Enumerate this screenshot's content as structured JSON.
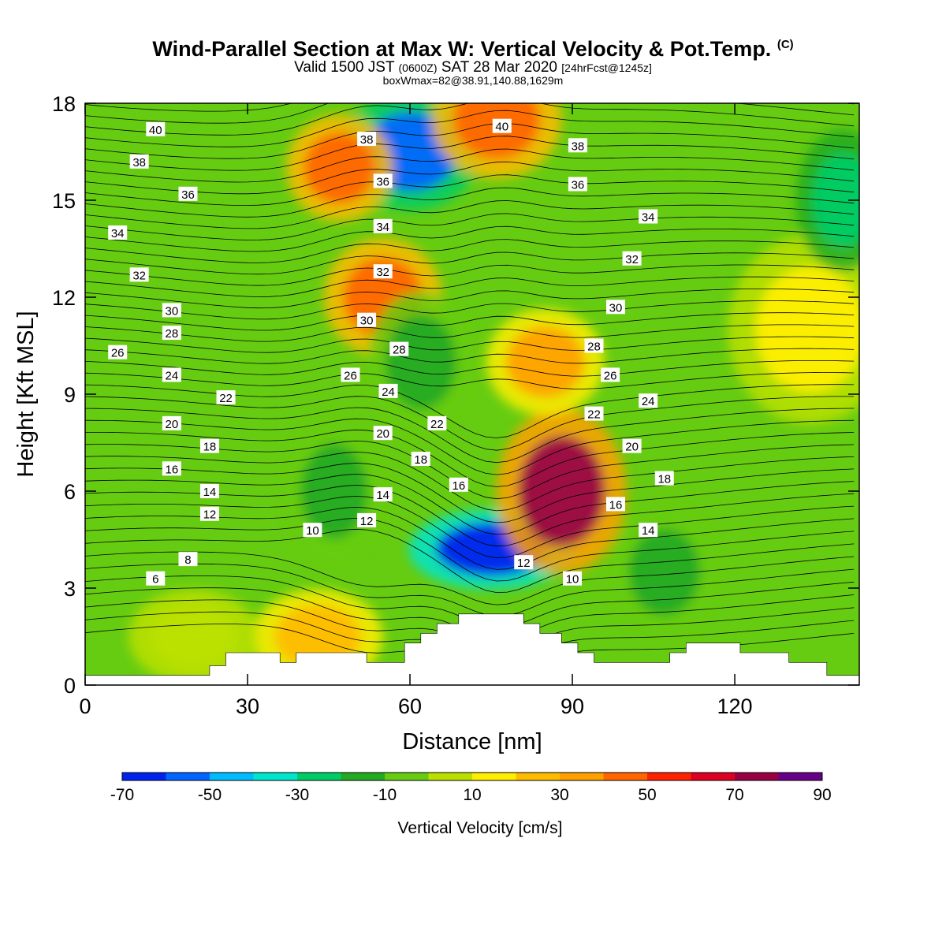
{
  "title": {
    "main": "Wind-Parallel Section at Max W: Vertical Velocity & Pot.Temp.",
    "copyright": "(C)",
    "valid_prefix": "Valid 1500 JST",
    "valid_utc": "(0600Z)",
    "valid_date": "SAT 28 Mar 2020",
    "forecast": "[24hrFcst@1245z]",
    "box_info": "boxWmax=82@38.91,140.88,1629m"
  },
  "chart_data": {
    "type": "heatmap",
    "xlabel": "Distance [nm]",
    "ylabel": "Height [Kft MSL]",
    "xlim": [
      0,
      143
    ],
    "ylim": [
      0,
      18
    ],
    "x_ticks": [
      0,
      30,
      60,
      90,
      120
    ],
    "y_ticks": [
      0,
      3,
      6,
      9,
      12,
      15,
      18
    ],
    "colorbar": {
      "label": "Vertical Velocity [cm/s]",
      "levels": [
        -70,
        -60,
        -50,
        -40,
        -30,
        -20,
        -10,
        0,
        10,
        20,
        30,
        40,
        50,
        60,
        70,
        80,
        90
      ],
      "tick_labels": [
        "-70",
        "-50",
        "-30",
        "-10",
        "10",
        "30",
        "50",
        "70",
        "90"
      ],
      "colors": [
        "#0022ee",
        "#0066ff",
        "#00bbff",
        "#00e5cc",
        "#00cc66",
        "#22aa22",
        "#66cc11",
        "#bbe000",
        "#ffee00",
        "#ffbb00",
        "#ffa000",
        "#ff6600",
        "#ff2200",
        "#dd0022",
        "#990044",
        "#660088"
      ]
    },
    "velocity_features": [
      {
        "x": 75,
        "y": 4.2,
        "value": -65
      },
      {
        "x": 60,
        "y": 16.5,
        "value": -55
      },
      {
        "x": 88,
        "y": 6.0,
        "value": 70
      },
      {
        "x": 76,
        "y": 17.5,
        "value": 45
      },
      {
        "x": 47,
        "y": 16.0,
        "value": 45
      },
      {
        "x": 55,
        "y": 12.0,
        "value": 40
      },
      {
        "x": 85,
        "y": 10.0,
        "value": 35
      },
      {
        "x": 43,
        "y": 1.5,
        "value": 25
      },
      {
        "x": 134,
        "y": 11.0,
        "value": 15
      },
      {
        "x": 20,
        "y": 1.5,
        "value": 8
      },
      {
        "x": 46,
        "y": 6.0,
        "value": -18
      },
      {
        "x": 62,
        "y": 10.0,
        "value": -15
      },
      {
        "x": 107,
        "y": 3.5,
        "value": -15
      },
      {
        "x": 140,
        "y": 15.0,
        "value": -22
      }
    ],
    "theta_labels": [
      {
        "value": "40",
        "x": 13,
        "y": 17.2
      },
      {
        "value": "38",
        "x": 10,
        "y": 16.2
      },
      {
        "value": "36",
        "x": 19,
        "y": 15.2
      },
      {
        "value": "34",
        "x": 6,
        "y": 14.0
      },
      {
        "value": "32",
        "x": 10,
        "y": 12.7
      },
      {
        "value": "30",
        "x": 16,
        "y": 11.6
      },
      {
        "value": "28",
        "x": 16,
        "y": 10.9
      },
      {
        "value": "26",
        "x": 6,
        "y": 10.3
      },
      {
        "value": "24",
        "x": 16,
        "y": 9.6
      },
      {
        "value": "22",
        "x": 26,
        "y": 8.9
      },
      {
        "value": "20",
        "x": 16,
        "y": 8.1
      },
      {
        "value": "18",
        "x": 23,
        "y": 7.4
      },
      {
        "value": "16",
        "x": 16,
        "y": 6.7
      },
      {
        "value": "14",
        "x": 23,
        "y": 6.0
      },
      {
        "value": "12",
        "x": 23,
        "y": 5.3
      },
      {
        "value": "8",
        "x": 19,
        "y": 3.9
      },
      {
        "value": "6",
        "x": 13,
        "y": 3.3
      },
      {
        "value": "10",
        "x": 42,
        "y": 4.8
      },
      {
        "value": "12",
        "x": 52,
        "y": 5.1
      },
      {
        "value": "14",
        "x": 55,
        "y": 5.9
      },
      {
        "value": "20",
        "x": 55,
        "y": 7.8
      },
      {
        "value": "24",
        "x": 56,
        "y": 9.1
      },
      {
        "value": "26",
        "x": 49,
        "y": 9.6
      },
      {
        "value": "28",
        "x": 58,
        "y": 10.4
      },
      {
        "value": "30",
        "x": 52,
        "y": 11.3
      },
      {
        "value": "32",
        "x": 55,
        "y": 12.8
      },
      {
        "value": "34",
        "x": 55,
        "y": 14.2
      },
      {
        "value": "36",
        "x": 55,
        "y": 15.6
      },
      {
        "value": "38",
        "x": 52,
        "y": 16.9
      },
      {
        "value": "22",
        "x": 65,
        "y": 8.1
      },
      {
        "value": "18",
        "x": 62,
        "y": 7.0
      },
      {
        "value": "16",
        "x": 69,
        "y": 6.2
      },
      {
        "value": "12",
        "x": 81,
        "y": 3.8
      },
      {
        "value": "10",
        "x": 90,
        "y": 3.3
      },
      {
        "value": "40",
        "x": 77,
        "y": 17.3
      },
      {
        "value": "38",
        "x": 91,
        "y": 16.7
      },
      {
        "value": "36",
        "x": 91,
        "y": 15.5
      },
      {
        "value": "34",
        "x": 104,
        "y": 14.5
      },
      {
        "value": "32",
        "x": 101,
        "y": 13.2
      },
      {
        "value": "30",
        "x": 98,
        "y": 11.7
      },
      {
        "value": "28",
        "x": 94,
        "y": 10.5
      },
      {
        "value": "26",
        "x": 97,
        "y": 9.6
      },
      {
        "value": "24",
        "x": 104,
        "y": 8.8
      },
      {
        "value": "22",
        "x": 94,
        "y": 8.4
      },
      {
        "value": "20",
        "x": 101,
        "y": 7.4
      },
      {
        "value": "18",
        "x": 107,
        "y": 6.4
      },
      {
        "value": "16",
        "x": 98,
        "y": 5.6
      },
      {
        "value": "14",
        "x": 104,
        "y": 4.8
      }
    ],
    "terrain": [
      [
        0,
        0.3
      ],
      [
        23,
        0.3
      ],
      [
        23,
        0.6
      ],
      [
        26,
        0.6
      ],
      [
        26,
        1.0
      ],
      [
        36,
        1.0
      ],
      [
        36,
        0.7
      ],
      [
        39,
        0.7
      ],
      [
        39,
        1.0
      ],
      [
        52,
        1.0
      ],
      [
        52,
        0.7
      ],
      [
        59,
        0.7
      ],
      [
        59,
        1.3
      ],
      [
        62,
        1.3
      ],
      [
        62,
        1.6
      ],
      [
        65,
        1.6
      ],
      [
        65,
        1.9
      ],
      [
        69,
        1.9
      ],
      [
        69,
        2.2
      ],
      [
        81,
        2.2
      ],
      [
        81,
        1.9
      ],
      [
        84,
        1.9
      ],
      [
        84,
        1.6
      ],
      [
        88,
        1.6
      ],
      [
        88,
        1.3
      ],
      [
        91,
        1.3
      ],
      [
        91,
        1.0
      ],
      [
        94,
        1.0
      ],
      [
        94,
        0.7
      ],
      [
        108,
        0.7
      ],
      [
        108,
        1.0
      ],
      [
        111,
        1.0
      ],
      [
        111,
        1.3
      ],
      [
        121,
        1.3
      ],
      [
        121,
        1.0
      ],
      [
        130,
        1.0
      ],
      [
        130,
        0.7
      ],
      [
        137,
        0.7
      ],
      [
        137,
        0.3
      ],
      [
        143,
        0.3
      ]
    ]
  }
}
